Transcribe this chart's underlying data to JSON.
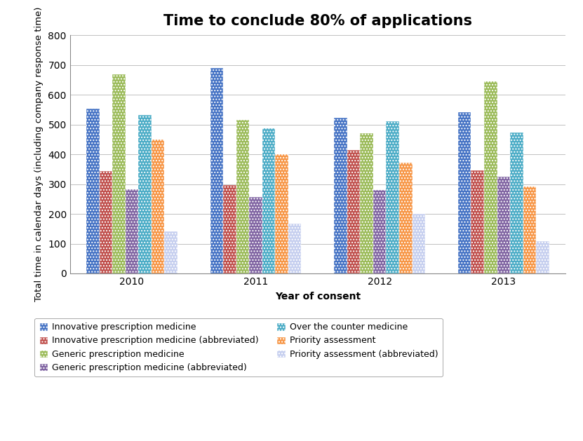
{
  "title": "Time to conclude 80% of applications",
  "xlabel": "Year of consent",
  "ylabel": "Total time in calendar days (including company response time)",
  "years": [
    "2010",
    "2011",
    "2012",
    "2013"
  ],
  "series": [
    {
      "label": "Innovative prescription medicine",
      "color": "#4472C4",
      "hatch": "....",
      "values": [
        553,
        690,
        523,
        541
      ]
    },
    {
      "label": "Innovative prescription medicine (abbreviated)",
      "color": "#C0504D",
      "hatch": "....",
      "values": [
        343,
        297,
        415,
        347
      ]
    },
    {
      "label": "Generic prescription medicine",
      "color": "#9BBB59",
      "hatch": "....",
      "values": [
        668,
        516,
        471,
        646
      ]
    },
    {
      "label": "Generic prescription medicine (abbreviated)",
      "color": "#8064A2",
      "hatch": "....",
      "values": [
        283,
        256,
        281,
        325
      ]
    },
    {
      "label": "Over the counter medicine",
      "color": "#4BACC6",
      "hatch": "....",
      "values": [
        532,
        487,
        511,
        474
      ]
    },
    {
      "label": "Priority assessment",
      "color": "#F79646",
      "hatch": "....",
      "values": [
        450,
        401,
        372,
        292
      ]
    },
    {
      "label": "Priority assessment (abbreviated)",
      "color": "#C6CFEF",
      "hatch": "....",
      "values": [
        141,
        168,
        200,
        108
      ]
    }
  ],
  "legend_order": [
    0,
    1,
    2,
    3,
    4,
    5,
    6
  ],
  "ylim": [
    0,
    800
  ],
  "yticks": [
    0,
    100,
    200,
    300,
    400,
    500,
    600,
    700,
    800
  ],
  "background_color": "#FFFFFF",
  "grid_color": "#C0C0C0",
  "title_fontsize": 15,
  "axis_label_fontsize": 10,
  "tick_fontsize": 10,
  "legend_fontsize": 9
}
